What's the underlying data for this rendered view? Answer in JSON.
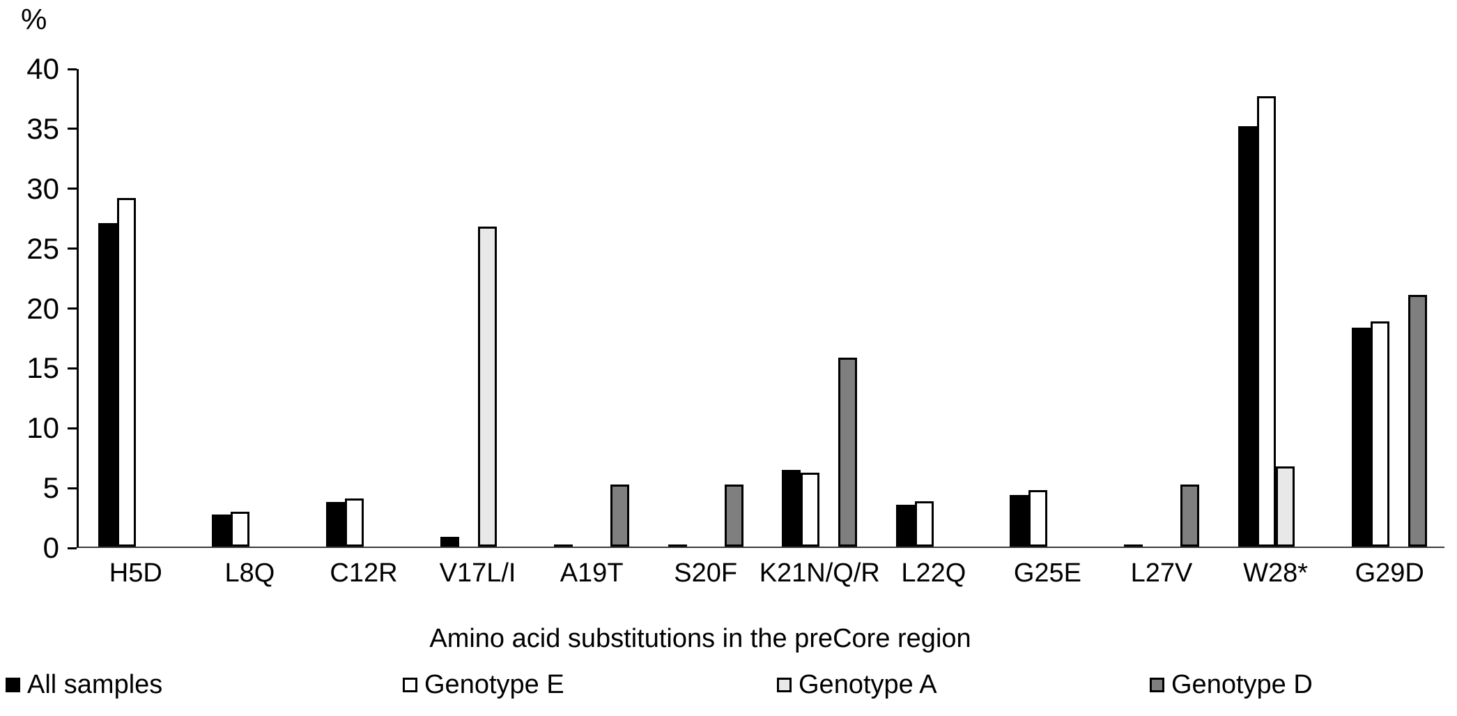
{
  "chart_data": {
    "type": "bar",
    "title": "",
    "xlabel": "Amino acid substitutions in the preCore region",
    "ylabel": "%",
    "ylim": [
      0,
      40
    ],
    "yticks": [
      0,
      5,
      10,
      15,
      20,
      25,
      30,
      35,
      40
    ],
    "grid": false,
    "legend_position": "bottom",
    "categories": [
      "H5D",
      "L8Q",
      "C12R",
      "V17L/I",
      "A19T",
      "S20F",
      "K21N/Q/R",
      "L22Q",
      "G25E",
      "L27V",
      "W28*",
      "G29D"
    ],
    "series": [
      {
        "name": "All samples",
        "color": "#000000",
        "values": [
          27.0,
          2.7,
          3.7,
          0.8,
          0.1,
          0.1,
          6.4,
          3.5,
          4.3,
          0.1,
          35.1,
          18.3
        ]
      },
      {
        "name": "Genotype E",
        "color": "#ffffff",
        "values": [
          29.1,
          2.9,
          4.0,
          0,
          0,
          0,
          6.2,
          3.8,
          4.7,
          0,
          37.6,
          18.8
        ]
      },
      {
        "name": "Genotype A",
        "color": "#e8e8e8",
        "values": [
          0,
          0,
          0,
          26.7,
          0,
          0,
          0,
          0,
          0,
          0,
          6.7,
          0
        ]
      },
      {
        "name": "Genotype D",
        "color": "#7f7f7f",
        "values": [
          0,
          0,
          0,
          0,
          5.2,
          5.2,
          15.8,
          0,
          0,
          5.2,
          0,
          21.0
        ]
      }
    ]
  }
}
